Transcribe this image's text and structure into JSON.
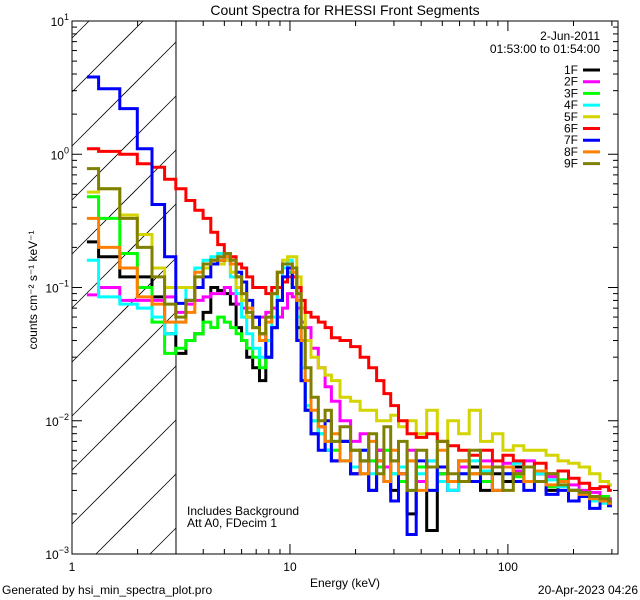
{
  "chart_data": {
    "type": "line",
    "step": true,
    "title": "Count Spectra for RHESSI Front Segments",
    "xlabel": "Energy (keV)",
    "ylabel": "counts cm⁻² s⁻¹ keV⁻¹",
    "xscale": "log",
    "yscale": "log",
    "xlim": [
      1,
      320
    ],
    "ylim": [
      0.001,
      10
    ],
    "grid": false,
    "x_ticks": [
      {
        "value": 1,
        "label": "1"
      },
      {
        "value": 10,
        "label": "10"
      },
      {
        "value": 100,
        "label": "100"
      }
    ],
    "y_ticks": [
      {
        "value": 0.001,
        "base": "10",
        "exp": "−3"
      },
      {
        "value": 0.01,
        "base": "10",
        "exp": "−2"
      },
      {
        "value": 0.1,
        "base": "10",
        "exp": "−1"
      },
      {
        "value": 1,
        "base": "10",
        "exp": "0"
      },
      {
        "value": 10,
        "base": "10",
        "exp": "1"
      }
    ],
    "hatched_region_keV": [
      1,
      3
    ],
    "legend_placement": "top-right",
    "date": "2-Jun-2011",
    "time_range": "01:53:00 to 01:54:00",
    "annotations": [
      "Includes Background",
      "Att A0, FDecim 1"
    ],
    "x": [
      1.17,
      1.5,
      1.83,
      2.17,
      2.5,
      2.83,
      3.17,
      3.5,
      3.83,
      4.17,
      4.5,
      4.83,
      5.17,
      5.5,
      5.83,
      6.17,
      6.5,
      7,
      7.5,
      8,
      8.5,
      9,
      9.5,
      10,
      10.5,
      11,
      11.5,
      12,
      13,
      14,
      15,
      16,
      18,
      20,
      22,
      24,
      26,
      28,
      30,
      33,
      36,
      40,
      45,
      50,
      56,
      63,
      70,
      80,
      90,
      100,
      112,
      125,
      140,
      160,
      180,
      200,
      225,
      250,
      280,
      300
    ],
    "series": [
      {
        "name": "1F",
        "color": "#000000",
        "values": [
          0.22,
          0.17,
          0.12,
          0.12,
          0.085,
          0.045,
          0.032,
          0.04,
          0.045,
          0.065,
          0.1,
          0.095,
          0.09,
          0.075,
          0.05,
          0.04,
          0.03,
          0.025,
          0.02,
          0.03,
          0.05,
          0.08,
          0.11,
          0.13,
          0.1,
          0.05,
          0.02,
          0.012,
          0.008,
          0.009,
          0.006,
          0.005,
          0.007,
          0.004,
          0.005,
          0.003,
          0.006,
          0.0045,
          0.003,
          0.0035,
          0.002,
          0.0035,
          0.0015,
          0.004,
          0.003,
          0.005,
          0.0045,
          0.003,
          0.004,
          0.0035,
          0.0045,
          0.0035,
          0.004,
          0.003,
          0.0035,
          0.003,
          0.0028,
          0.0026,
          0.0025,
          0.0024
        ]
      },
      {
        "name": "2F",
        "color": "#ff00ff",
        "values": [
          0.088,
          0.1,
          0.08,
          0.08,
          0.08,
          0.085,
          0.065,
          0.075,
          0.08,
          0.085,
          0.09,
          0.09,
          0.1,
          0.09,
          0.075,
          0.07,
          0.06,
          0.06,
          0.06,
          0.065,
          0.07,
          0.06,
          0.07,
          0.09,
          0.085,
          0.07,
          0.055,
          0.05,
          0.035,
          0.025,
          0.018,
          0.014,
          0.01,
          0.007,
          0.008,
          0.005,
          0.006,
          0.0045,
          0.005,
          0.004,
          0.006,
          0.0035,
          0.005,
          0.004,
          0.003,
          0.0045,
          0.004,
          0.005,
          0.0045,
          0.0048,
          0.0042,
          0.005,
          0.004,
          0.0038,
          0.0036,
          0.0033,
          0.003,
          0.0029,
          0.0027,
          0.0026
        ]
      },
      {
        "name": "3F",
        "color": "#00ff00",
        "values": [
          0.48,
          0.33,
          0.18,
          0.1,
          0.055,
          0.032,
          0.035,
          0.04,
          0.045,
          0.055,
          0.05,
          0.06,
          0.055,
          0.05,
          0.045,
          0.04,
          0.035,
          0.03,
          0.025,
          0.03,
          0.05,
          0.08,
          0.12,
          0.13,
          0.1,
          0.04,
          0.02,
          0.012,
          0.01,
          0.008,
          0.007,
          0.006,
          0.005,
          0.006,
          0.004,
          0.005,
          0.0045,
          0.006,
          0.004,
          0.0035,
          0.005,
          0.0045,
          0.003,
          0.004,
          0.0035,
          0.005,
          0.004,
          0.0035,
          0.0045,
          0.004,
          0.0038,
          0.0035,
          0.0042,
          0.0032,
          0.0036,
          0.003,
          0.0028,
          0.0026,
          0.0027,
          0.0025
        ]
      },
      {
        "name": "4F",
        "color": "#00ffff",
        "values": [
          0.16,
          0.085,
          0.075,
          0.07,
          0.06,
          0.045,
          0.055,
          0.1,
          0.14,
          0.16,
          0.17,
          0.18,
          0.16,
          0.12,
          0.09,
          0.06,
          0.045,
          0.035,
          0.03,
          0.04,
          0.06,
          0.1,
          0.14,
          0.16,
          0.12,
          0.06,
          0.025,
          0.013,
          0.01,
          0.008,
          0.006,
          0.007,
          0.005,
          0.0045,
          0.006,
          0.004,
          0.005,
          0.0035,
          0.004,
          0.0045,
          0.003,
          0.004,
          0.005,
          0.0035,
          0.003,
          0.004,
          0.005,
          0.0042,
          0.0045,
          0.004,
          0.0048,
          0.0035,
          0.004,
          0.0036,
          0.0032,
          0.003,
          0.0028,
          0.0025,
          0.0024,
          0.0023
        ]
      },
      {
        "name": "5F",
        "color": "#d4d400",
        "values": [
          0.52,
          0.55,
          0.35,
          0.25,
          0.14,
          0.1,
          0.1,
          0.1,
          0.12,
          0.14,
          0.15,
          0.15,
          0.16,
          0.13,
          0.1,
          0.08,
          0.06,
          0.05,
          0.045,
          0.06,
          0.09,
          0.13,
          0.16,
          0.17,
          0.17,
          0.12,
          0.07,
          0.04,
          0.03,
          0.025,
          0.022,
          0.02,
          0.015,
          0.014,
          0.012,
          0.012,
          0.01,
          0.01,
          0.011,
          0.009,
          0.01,
          0.008,
          0.012,
          0.007,
          0.01,
          0.008,
          0.012,
          0.007,
          0.008,
          0.006,
          0.0065,
          0.006,
          0.006,
          0.0055,
          0.005,
          0.0048,
          0.0045,
          0.004,
          0.0035,
          0.0033
        ]
      },
      {
        "name": "6F",
        "color": "#ff0000",
        "values": [
          1.1,
          1.05,
          1.0,
          0.85,
          0.8,
          0.65,
          0.55,
          0.45,
          0.38,
          0.33,
          0.26,
          0.21,
          0.18,
          0.17,
          0.15,
          0.14,
          0.12,
          0.1,
          0.1,
          0.09,
          0.1,
          0.1,
          0.11,
          0.12,
          0.12,
          0.1,
          0.08,
          0.065,
          0.06,
          0.055,
          0.05,
          0.042,
          0.04,
          0.036,
          0.03,
          0.025,
          0.02,
          0.016,
          0.013,
          0.01,
          0.008,
          0.0075,
          0.008,
          0.007,
          0.0065,
          0.006,
          0.0055,
          0.006,
          0.005,
          0.0055,
          0.005,
          0.0045,
          0.0048,
          0.004,
          0.0042,
          0.0037,
          0.0034,
          0.0031,
          0.0032,
          0.003
        ]
      },
      {
        "name": "7F",
        "color": "#0000ff",
        "values": [
          3.8,
          3.1,
          2.2,
          1.1,
          0.42,
          0.17,
          0.076,
          0.08,
          0.1,
          0.12,
          0.15,
          0.16,
          0.17,
          0.15,
          0.13,
          0.11,
          0.08,
          0.06,
          0.045,
          0.03,
          0.05,
          0.08,
          0.12,
          0.14,
          0.1,
          0.04,
          0.02,
          0.012,
          0.008,
          0.006,
          0.01,
          0.005,
          0.007,
          0.004,
          0.006,
          0.003,
          0.005,
          0.0035,
          0.0025,
          0.004,
          0.0014,
          0.005,
          0.003,
          0.0045,
          0.0035,
          0.004,
          0.0035,
          0.0045,
          0.003,
          0.004,
          0.0035,
          0.003,
          0.0035,
          0.0028,
          0.003,
          0.0025,
          0.0027,
          0.0022,
          0.0025,
          0.0023
        ]
      },
      {
        "name": "8F",
        "color": "#ff8000",
        "values": [
          0.33,
          0.2,
          0.14,
          0.085,
          0.075,
          0.055,
          0.055,
          0.065,
          0.13,
          0.15,
          0.16,
          0.16,
          0.17,
          0.15,
          0.12,
          0.09,
          0.07,
          0.05,
          0.04,
          0.055,
          0.09,
          0.13,
          0.15,
          0.15,
          0.13,
          0.08,
          0.04,
          0.02,
          0.012,
          0.009,
          0.007,
          0.008,
          0.005,
          0.006,
          0.004,
          0.007,
          0.005,
          0.0035,
          0.006,
          0.004,
          0.005,
          0.003,
          0.0045,
          0.006,
          0.0035,
          0.005,
          0.004,
          0.0045,
          0.003,
          0.0045,
          0.004,
          0.0035,
          0.0042,
          0.0033,
          0.0035,
          0.003,
          0.0028,
          0.0026,
          0.0025,
          0.0024
        ]
      },
      {
        "name": "9F",
        "color": "#808000",
        "values": [
          0.78,
          0.55,
          0.33,
          0.2,
          0.12,
          0.075,
          0.06,
          0.08,
          0.12,
          0.15,
          0.16,
          0.17,
          0.18,
          0.16,
          0.12,
          0.09,
          0.065,
          0.05,
          0.045,
          0.06,
          0.09,
          0.13,
          0.15,
          0.15,
          0.14,
          0.09,
          0.05,
          0.025,
          0.015,
          0.01,
          0.012,
          0.007,
          0.009,
          0.006,
          0.005,
          0.008,
          0.004,
          0.009,
          0.005,
          0.007,
          0.003,
          0.006,
          0.0045,
          0.007,
          0.004,
          0.0035,
          0.006,
          0.004,
          0.0045,
          0.003,
          0.004,
          0.0045,
          0.0035,
          0.004,
          0.0033,
          0.003,
          0.0029,
          0.0027,
          0.0026,
          0.0025
        ]
      }
    ]
  },
  "footer": {
    "generator": "Generated by hsi_min_spectra_plot.pro",
    "timestamp": "20-Apr-2023 04:26"
  }
}
